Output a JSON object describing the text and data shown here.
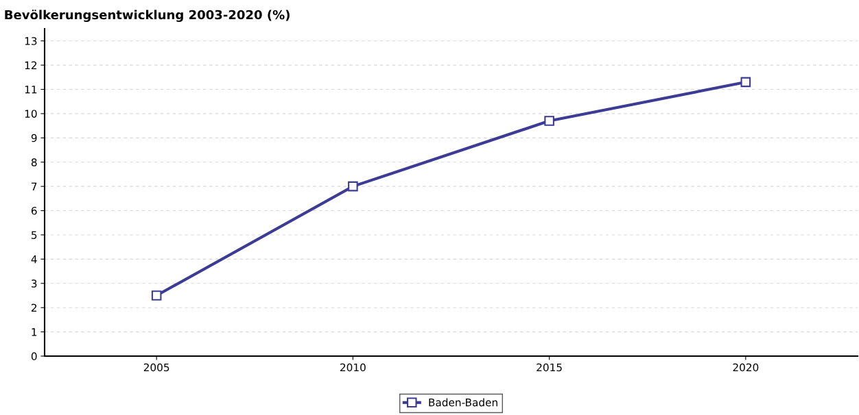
{
  "chart_data": {
    "type": "line",
    "title": "Bevölkerungsentwicklung 2003-2020 (%)",
    "categories": [
      "2005",
      "2010",
      "2015",
      "2020"
    ],
    "series": [
      {
        "name": "Baden-Baden",
        "color": "#3c3c96",
        "values": [
          2.5,
          7.0,
          9.7,
          11.3
        ]
      }
    ],
    "ylim": [
      0,
      13.5
    ],
    "yticks": [
      0,
      1,
      2,
      3,
      4,
      5,
      6,
      7,
      8,
      9,
      10,
      11,
      12,
      13
    ],
    "grid": "y",
    "legend": "bottom",
    "marker": "square",
    "line_style": "solid"
  }
}
